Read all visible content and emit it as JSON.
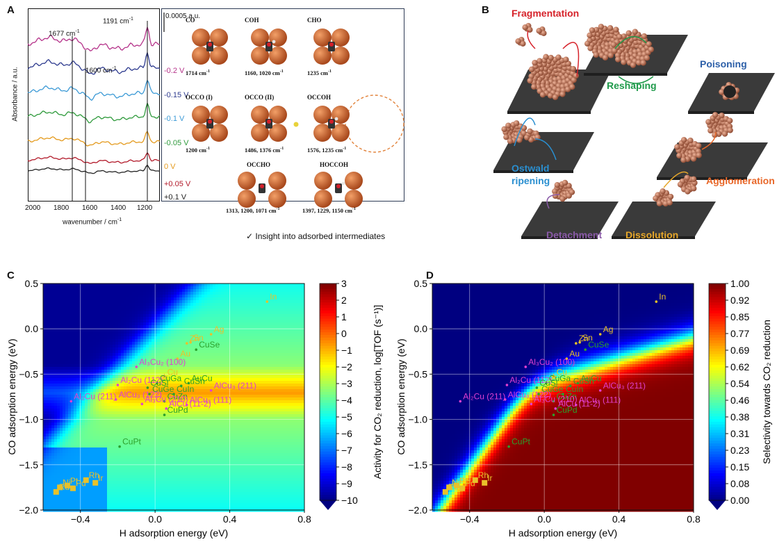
{
  "panels": {
    "a": {
      "letter": "A",
      "ylabel": "Absorbance / a.u.",
      "xlabel": "wavenumber / cm",
      "xlabel_sup": "-1",
      "xticks": [
        "2000",
        "1800",
        "1600",
        "1400",
        "1200"
      ],
      "scalebar": "0.0005 a.u.",
      "peaks": [
        {
          "label": "1677 cm",
          "sup": "-1"
        },
        {
          "label": "1600 cm",
          "sup": "-1"
        },
        {
          "label": "1191 cm",
          "sup": "-1"
        }
      ],
      "potentials": [
        {
          "label": "-0.2 V",
          "color": "#b5338a"
        },
        {
          "label": "-0.15 V",
          "color": "#2e3b8f"
        },
        {
          "label": "-0.1 V",
          "color": "#3c9ad6"
        },
        {
          "label": "-0.05 V",
          "color": "#2f9a3c"
        },
        {
          "label": "0 V",
          "color": "#e49a1d"
        },
        {
          "label": "+0.05 V",
          "color": "#b21a2a"
        },
        {
          "label": "+0.1 V",
          "color": "#222222"
        }
      ],
      "intermediates": [
        {
          "name": "CO",
          "freq": "1714 cm",
          "sup": "-1"
        },
        {
          "name": "COH",
          "freq": "1160, 1020 cm",
          "sup": "-1"
        },
        {
          "name": "CHO",
          "freq": "1235 cm",
          "sup": "-1"
        },
        {
          "name": "OCCO (I)",
          "freq": "1200 cm",
          "sup": "-1"
        },
        {
          "name": "OCCO (II)",
          "freq": "1486, 1376 cm",
          "sup": "-1"
        },
        {
          "name": "OCCOH",
          "freq": "1576, 1235 cm",
          "sup": "-1"
        },
        {
          "name": "OCCHO",
          "freq": "1313, 1200,  1071 cm",
          "sup": "-1"
        },
        {
          "name": "HOCCOH",
          "freq": "1397, 1229, 1150 cm",
          "sup": "-1"
        }
      ],
      "insight": "✓ Insight into adsorbed intermediates"
    },
    "b": {
      "letter": "B",
      "labels": [
        {
          "text": "Fragmentation",
          "color": "#d6222a"
        },
        {
          "text": "Reshaping",
          "color": "#1e9a4a"
        },
        {
          "text": "Poisoning",
          "color": "#2c5fa8"
        },
        {
          "text": "Ostwald",
          "color": "#2a8fd0"
        },
        {
          "text": "ripening",
          "color": "#2a8fd0"
        },
        {
          "text": "Agglomeration",
          "color": "#e8682a"
        },
        {
          "text": "Detachment",
          "color": "#8a5aa8"
        },
        {
          "text": "Dissolution",
          "color": "#e6a72a"
        }
      ]
    },
    "c": {
      "letter": "C",
      "xlabel": "H adsorption energy (eV)",
      "ylabel": "CO adsorption energy (eV)",
      "cbar_label": "Activity for CO₂ reduction, log[TOF (s⁻¹)]",
      "cbar_ticks": [
        "3",
        "2",
        "1",
        "0",
        "−1",
        "−2",
        "−3",
        "−4",
        "−5",
        "−6",
        "−7",
        "−8",
        "−9",
        "−10"
      ]
    },
    "d": {
      "letter": "D",
      "xlabel": "H adsorption energy (eV)",
      "ylabel": "CO adsorption energy (eV)",
      "cbar_label": "Selectivity towards CO₂ reduction",
      "cbar_ticks": [
        "1.00",
        "0.92",
        "0.85",
        "0.77",
        "0.69",
        "0.62",
        "0.54",
        "0.46",
        "0.38",
        "0.31",
        "0.23",
        "0.15",
        "0.08",
        "0.00"
      ]
    }
  },
  "chart_data": [
    {
      "type": "line",
      "panel": "A",
      "xlabel": "wavenumber / cm-1",
      "ylabel": "Absorbance / a.u.",
      "x_reversed": true,
      "xlim": [
        2050,
        1100
      ],
      "series": [
        {
          "name": "-0.2 V"
        },
        {
          "name": "-0.15 V"
        },
        {
          "name": "-0.1 V"
        },
        {
          "name": "-0.05 V"
        },
        {
          "name": "0 V"
        },
        {
          "name": "+0.05 V"
        },
        {
          "name": "+0.1 V"
        }
      ],
      "marked_peaks": [
        1677,
        1600,
        1191
      ]
    },
    {
      "type": "heatmap",
      "panel": "C",
      "xlabel": "H adsorption energy (eV)",
      "ylabel": "CO adsorption energy (eV)",
      "xlim": [
        -0.6,
        0.8
      ],
      "ylim": [
        -2.0,
        0.5
      ],
      "xticks": [
        "−0.4",
        "0.0",
        "0.4",
        "0.8"
      ],
      "yticks": [
        "0.5",
        "0.0",
        "−0.5",
        "−1.0",
        "−1.5",
        "−2.0"
      ],
      "colorbar": {
        "label": "Activity for CO₂ reduction, log[TOF (s⁻¹)]",
        "range": [
          -10,
          3
        ]
      },
      "points": [
        {
          "label": "In",
          "x": 0.6,
          "y": 0.3,
          "color": "#e8c12a",
          "marker": "dot"
        },
        {
          "label": "Sn",
          "x": 0.19,
          "y": -0.15,
          "color": "#e8c12a",
          "marker": "dot"
        },
        {
          "label": "Ag",
          "x": 0.3,
          "y": -0.06,
          "color": "#e8c12a",
          "marker": "dot"
        },
        {
          "label": "Zn",
          "x": 0.17,
          "y": -0.16,
          "color": "#e8c12a",
          "marker": "dot"
        },
        {
          "label": "CuSe",
          "x": 0.22,
          "y": -0.23,
          "color": "#2ca02c",
          "marker": "dot"
        },
        {
          "label": "Au",
          "x": 0.12,
          "y": -0.33,
          "color": "#e8c12a",
          "marker": "dot"
        },
        {
          "label": "Cu",
          "x": 0.05,
          "y": -0.53,
          "color": "#e8c12a",
          "marker": "star"
        },
        {
          "label": "Al₃Cu₂ (100)",
          "x": -0.1,
          "y": -0.42,
          "color": "#e040d0",
          "marker": "dot"
        },
        {
          "label": "AuCu",
          "x": 0.18,
          "y": -0.6,
          "color": "#2ca02c",
          "marker": "dot"
        },
        {
          "label": "CuGa",
          "x": 0.01,
          "y": -0.6,
          "color": "#2ca02c",
          "marker": "dot"
        },
        {
          "label": "CuSn",
          "x": 0.14,
          "y": -0.63,
          "color": "#2ca02c",
          "marker": "dot"
        },
        {
          "label": "Al₂Cu (112)",
          "x": -0.2,
          "y": -0.62,
          "color": "#e040d0",
          "marker": "dot"
        },
        {
          "label": "CuSi",
          "x": -0.04,
          "y": -0.65,
          "color": "#2ca02c",
          "marker": "dot"
        },
        {
          "label": "CuIn",
          "x": 0.1,
          "y": -0.72,
          "color": "#2ca02c",
          "marker": "dot"
        },
        {
          "label": "CuGe",
          "x": -0.03,
          "y": -0.72,
          "color": "#2ca02c",
          "marker": "dot"
        },
        {
          "label": "CuZn",
          "x": 0.05,
          "y": -0.8,
          "color": "#2ca02c",
          "marker": "dot"
        },
        {
          "label": "AlCu₃ (211)",
          "x": 0.3,
          "y": -0.68,
          "color": "#e040d0",
          "marker": "dot"
        },
        {
          "label": "AlCu₃ (111)",
          "x": 0.17,
          "y": -0.84,
          "color": "#e040d0",
          "marker": "dot"
        },
        {
          "label": "AlCu (11-2)",
          "x": 0.06,
          "y": -0.88,
          "color": "#e040d0",
          "marker": "dot"
        },
        {
          "label": "Al₂Cu (211)",
          "x": -0.45,
          "y": -0.8,
          "color": "#e040d0",
          "marker": "dot"
        },
        {
          "label": "AlCu₃ (122)",
          "x": -0.21,
          "y": -0.78,
          "color": "#e040d0",
          "marker": "dot"
        },
        {
          "label": "Al₃Cu (210)",
          "x": -0.07,
          "y": -0.83,
          "color": "#e040d0",
          "marker": "dot"
        },
        {
          "label": "CuPd",
          "x": 0.05,
          "y": -0.95,
          "color": "#2ca02c",
          "marker": "dot"
        },
        {
          "label": "CuPt",
          "x": -0.19,
          "y": -1.3,
          "color": "#2ca02c",
          "marker": "dot"
        },
        {
          "label": "Rh",
          "x": -0.37,
          "y": -1.67,
          "color": "#e8c12a",
          "marker": "square"
        },
        {
          "label": "Pt",
          "x": -0.47,
          "y": -1.73,
          "color": "#e8c12a",
          "marker": "square"
        },
        {
          "label": "Ir",
          "x": -0.32,
          "y": -1.7,
          "color": "#e8c12a",
          "marker": "square"
        },
        {
          "label": "Ni",
          "x": -0.51,
          "y": -1.75,
          "color": "#e8c12a",
          "marker": "square"
        },
        {
          "label": "Pd",
          "x": -0.44,
          "y": -1.76,
          "color": "#e8c12a",
          "marker": "square"
        },
        {
          "label": "Ru",
          "x": -0.53,
          "y": -1.8,
          "color": "#e8c12a",
          "marker": "square"
        }
      ]
    },
    {
      "type": "heatmap",
      "panel": "D",
      "xlabel": "H adsorption energy (eV)",
      "ylabel": "CO adsorption energy (eV)",
      "xlim": [
        -0.6,
        0.8
      ],
      "ylim": [
        -2.0,
        0.5
      ],
      "xticks": [
        "−0.4",
        "0.0",
        "0.4",
        "0.8"
      ],
      "yticks": [
        "0.5",
        "0.0",
        "−0.5",
        "−1.0",
        "−1.5",
        "−2.0"
      ],
      "colorbar": {
        "label": "Selectivity towards CO₂ reduction",
        "range": [
          0,
          1
        ]
      },
      "points": "same as panel C"
    }
  ]
}
